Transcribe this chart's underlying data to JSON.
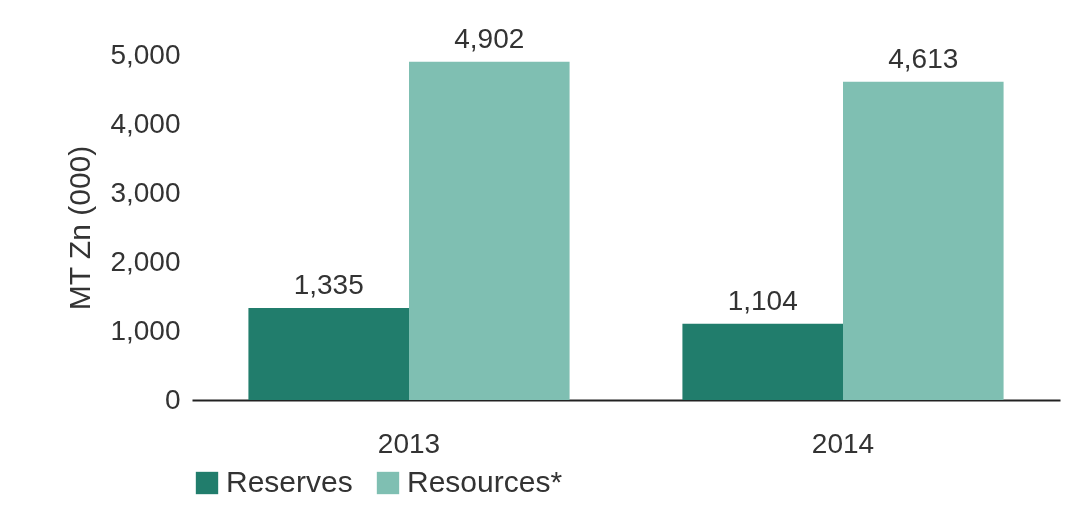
{
  "chart_data": {
    "type": "bar",
    "ylabel": "MT Zn (000)",
    "categories": [
      "2013",
      "2014"
    ],
    "series": [
      {
        "name": "Reserves",
        "color": "#217d6c",
        "values": [
          1335,
          1104
        ],
        "value_labels": [
          "1,335",
          "1,104"
        ]
      },
      {
        "name": "Resources*",
        "color": "#7fbfb2",
        "values": [
          4902,
          4613
        ],
        "value_labels": [
          "4,902",
          "4,613"
        ]
      }
    ],
    "ylim": [
      0,
      5000
    ],
    "yticks": [
      0,
      {
        "value": 1000,
        "label": "1,000"
      },
      {
        "value": 2000,
        "label": "2,000"
      },
      {
        "value": 3000,
        "label": "3,000"
      },
      {
        "value": 4000,
        "label": "4,000"
      },
      {
        "value": 5000,
        "label": "5,000"
      }
    ],
    "grid": false,
    "legend": "bottom"
  }
}
